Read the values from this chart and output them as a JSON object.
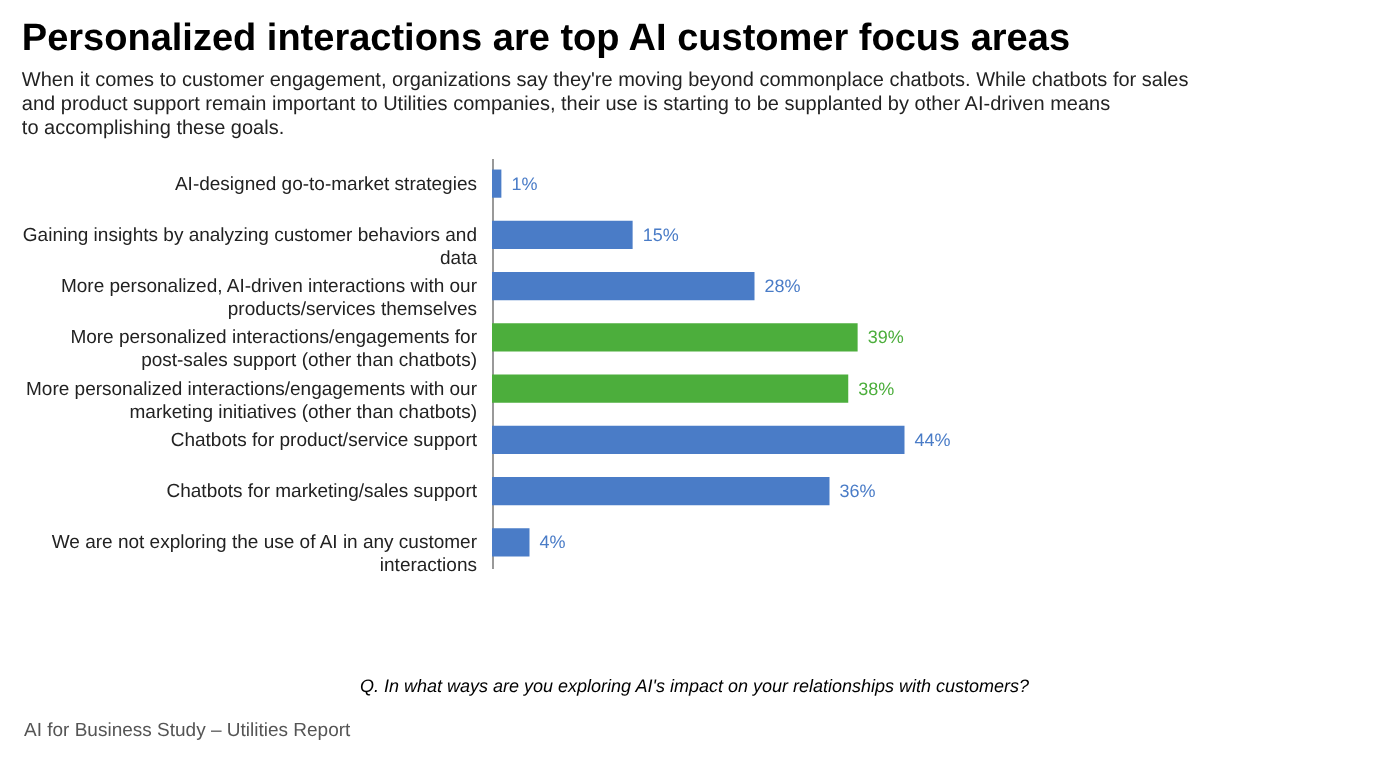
{
  "chart_data": {
    "type": "bar",
    "orientation": "horizontal",
    "title": "Personalized interactions are top AI customer focus areas",
    "subtitle": "When it comes to customer engagement, organizations say they're moving beyond commonplace chatbots. While chatbots for sales and product support remain important to Utilities companies, their use is starting to be supplanted by other AI-driven means to accomplishing these goals.",
    "categories": [
      "AI-designed go-to-market strategies",
      "Gaining insights by analyzing customer behaviors and data",
      "More personalized, AI-driven interactions with our products/services themselves",
      "More personalized interactions/engagements for post-sales support (other than chatbots)",
      "More personalized interactions/engagements with our marketing initiatives (other than chatbots)",
      "Chatbots for product/service support",
      "Chatbots for marketing/sales support",
      "We are not exploring the use of AI in any customer interactions"
    ],
    "values": [
      1,
      15,
      28,
      39,
      38,
      44,
      36,
      4
    ],
    "value_labels": [
      "1%",
      "15%",
      "28%",
      "39%",
      "38%",
      "44%",
      "36%",
      "4%"
    ],
    "colors": [
      "#4a7cc7",
      "#4a7cc7",
      "#4a7cc7",
      "#4cae3c",
      "#4cae3c",
      "#4a7cc7",
      "#4a7cc7",
      "#4a7cc7"
    ],
    "annotations": [
      "Q. In what ways are you exploring AI's impact on your relationships with customers?",
      "AI for Business Study – Utilities Report"
    ]
  }
}
